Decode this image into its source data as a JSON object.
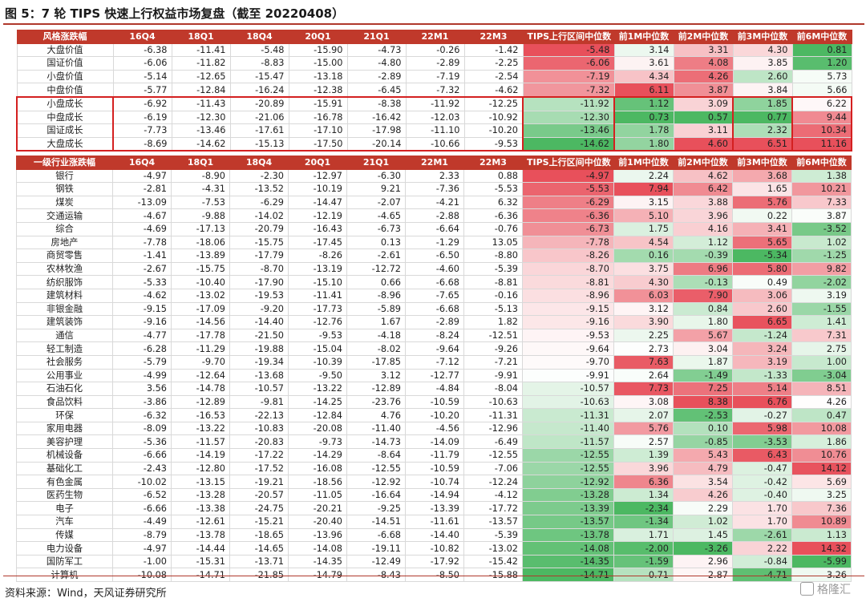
{
  "title": "图 5：7 轮 TIPS 快速上行权益市场复盘（截至 20220408）",
  "source": "资料来源：Wind，天风证券研究所",
  "watermark": "格隆汇",
  "colors": {
    "header_bg": "#c0392b",
    "header_text": "#ffffff",
    "neg_strong": "#4cb862",
    "pos_strong": "#e8505b",
    "box_border": "#d42020"
  },
  "style_table": {
    "headers": [
      "风格涨跌幅",
      "16Q4",
      "18Q1",
      "18Q4",
      "20Q1",
      "21Q1",
      "22M1",
      "22M3",
      "TIPS上行区间中位数",
      "前1M中位数",
      "前2M中位数",
      "前3M中位数",
      "前6M中位数"
    ],
    "rows": [
      [
        "大盘价值",
        "-6.38",
        "-11.41",
        "-5.48",
        "-15.90",
        "-4.73",
        "-0.26",
        "-1.42",
        "-5.48",
        "3.14",
        "3.31",
        "4.30",
        "0.81"
      ],
      [
        "国证价值",
        "-6.06",
        "-11.82",
        "-8.83",
        "-15.00",
        "-4.80",
        "-2.89",
        "-2.25",
        "-6.06",
        "3.61",
        "4.08",
        "3.85",
        "1.20"
      ],
      [
        "小盘价值",
        "-5.14",
        "-12.65",
        "-15.47",
        "-13.18",
        "-2.89",
        "-7.19",
        "-2.54",
        "-7.19",
        "4.34",
        "4.26",
        "2.60",
        "5.73"
      ],
      [
        "中盘价值",
        "-5.77",
        "-12.84",
        "-16.24",
        "-12.38",
        "-6.45",
        "-7.32",
        "-4.62",
        "-7.32",
        "6.11",
        "3.87",
        "3.84",
        "5.66"
      ],
      [
        "小盘成长",
        "-6.92",
        "-11.43",
        "-20.89",
        "-15.91",
        "-8.38",
        "-11.92",
        "-12.25",
        "-11.92",
        "1.12",
        "3.09",
        "1.85",
        "6.22"
      ],
      [
        "中盘成长",
        "-6.19",
        "-12.30",
        "-21.06",
        "-16.78",
        "-16.42",
        "-12.03",
        "-10.92",
        "-12.30",
        "0.73",
        "0.57",
        "0.77",
        "9.44"
      ],
      [
        "国证成长",
        "-7.73",
        "-13.46",
        "-17.61",
        "-17.10",
        "-17.98",
        "-11.10",
        "-10.20",
        "-13.46",
        "1.78",
        "3.11",
        "2.32",
        "10.34"
      ],
      [
        "大盘成长",
        "-8.69",
        "-14.62",
        "-15.13",
        "-17.50",
        "-20.14",
        "-10.66",
        "-9.53",
        "-14.62",
        "1.80",
        "4.60",
        "6.51",
        "11.16"
      ]
    ]
  },
  "industry_table": {
    "headers": [
      "一级行业涨跌幅",
      "16Q4",
      "18Q1",
      "18Q4",
      "20Q1",
      "21Q1",
      "22M1",
      "22M3",
      "TIPS上行区间中位数",
      "前1M中位数",
      "前2M中位数",
      "前3M中位数",
      "前6M中位数"
    ],
    "rows": [
      [
        "银行",
        "-4.97",
        "-8.90",
        "-2.30",
        "-12.97",
        "-6.30",
        "2.33",
        "0.88",
        "-4.97",
        "2.24",
        "4.62",
        "3.68",
        "1.38"
      ],
      [
        "钢铁",
        "-2.81",
        "-4.31",
        "-13.52",
        "-10.19",
        "9.21",
        "-7.36",
        "-5.53",
        "-5.53",
        "7.94",
        "6.42",
        "1.65",
        "10.21"
      ],
      [
        "煤炭",
        "-13.09",
        "-7.53",
        "-6.29",
        "-14.47",
        "-2.07",
        "-4.21",
        "6.32",
        "-6.29",
        "3.15",
        "3.88",
        "5.76",
        "7.33"
      ],
      [
        "交通运输",
        "-4.67",
        "-9.88",
        "-14.02",
        "-12.19",
        "-4.65",
        "-2.88",
        "-6.36",
        "-6.36",
        "5.10",
        "3.96",
        "0.22",
        "3.87"
      ],
      [
        "综合",
        "-4.69",
        "-17.13",
        "-20.79",
        "-16.43",
        "-6.73",
        "-6.64",
        "-0.76",
        "-6.73",
        "1.75",
        "4.16",
        "3.41",
        "-3.52"
      ],
      [
        "房地产",
        "-7.78",
        "-18.06",
        "-15.75",
        "-17.45",
        "0.13",
        "-1.29",
        "13.05",
        "-7.78",
        "4.54",
        "1.12",
        "5.65",
        "1.02"
      ],
      [
        "商贸零售",
        "-1.41",
        "-13.89",
        "-17.79",
        "-8.26",
        "-2.61",
        "-6.50",
        "-8.80",
        "-8.26",
        "0.16",
        "-0.39",
        "-5.34",
        "-1.25"
      ],
      [
        "农林牧渔",
        "-2.67",
        "-15.75",
        "-8.70",
        "-13.19",
        "-12.72",
        "-4.60",
        "-5.39",
        "-8.70",
        "3.75",
        "6.96",
        "5.80",
        "9.82"
      ],
      [
        "纺织服饰",
        "-5.33",
        "-10.40",
        "-17.90",
        "-15.10",
        "0.66",
        "-6.68",
        "-8.81",
        "-8.81",
        "4.30",
        "-0.13",
        "0.49",
        "-2.02"
      ],
      [
        "建筑材料",
        "-4.62",
        "-13.02",
        "-19.53",
        "-11.41",
        "-8.96",
        "-7.65",
        "-0.16",
        "-8.96",
        "6.03",
        "7.90",
        "3.06",
        "3.19"
      ],
      [
        "非银金融",
        "-9.15",
        "-17.09",
        "-9.20",
        "-17.73",
        "-5.89",
        "-6.68",
        "-5.13",
        "-9.15",
        "3.12",
        "0.84",
        "2.60",
        "-1.55"
      ],
      [
        "建筑装饰",
        "-9.16",
        "-14.56",
        "-14.40",
        "-12.76",
        "1.67",
        "-2.89",
        "1.82",
        "-9.16",
        "3.90",
        "1.80",
        "6.65",
        "1.41"
      ],
      [
        "通信",
        "-4.77",
        "-17.78",
        "-21.50",
        "-9.53",
        "-4.18",
        "-8.24",
        "-12.51",
        "-9.53",
        "2.25",
        "5.67",
        "-1.24",
        "7.31"
      ],
      [
        "轻工制造",
        "-6.28",
        "-11.29",
        "-19.88",
        "-15.04",
        "-8.02",
        "-9.64",
        "-9.26",
        "-9.64",
        "2.73",
        "3.04",
        "3.24",
        "2.75"
      ],
      [
        "社会服务",
        "-5.79",
        "-9.70",
        "-19.34",
        "-10.39",
        "-17.85",
        "-7.12",
        "-7.21",
        "-9.70",
        "7.63",
        "1.87",
        "3.19",
        "1.00"
      ],
      [
        "公用事业",
        "-4.99",
        "-12.64",
        "-13.68",
        "-9.50",
        "3.12",
        "-12.77",
        "-9.91",
        "-9.91",
        "2.64",
        "-1.49",
        "-1.33",
        "-3.04"
      ],
      [
        "石油石化",
        "3.56",
        "-14.78",
        "-10.57",
        "-13.22",
        "-12.89",
        "-4.84",
        "-8.04",
        "-10.57",
        "7.73",
        "7.25",
        "5.14",
        "8.51"
      ],
      [
        "食品饮料",
        "-3.86",
        "-12.89",
        "-9.81",
        "-14.25",
        "-23.76",
        "-10.59",
        "-10.63",
        "-10.63",
        "3.08",
        "8.38",
        "6.76",
        "4.26"
      ],
      [
        "环保",
        "-6.32",
        "-16.53",
        "-22.13",
        "-12.84",
        "4.76",
        "-10.20",
        "-11.31",
        "-11.31",
        "2.07",
        "-2.53",
        "-0.27",
        "0.47"
      ],
      [
        "家用电器",
        "-8.09",
        "-13.22",
        "-10.83",
        "-20.08",
        "-11.40",
        "-4.56",
        "-12.96",
        "-11.40",
        "5.76",
        "0.10",
        "5.98",
        "10.08"
      ],
      [
        "美容护理",
        "-5.36",
        "-11.57",
        "-20.83",
        "-9.73",
        "-14.73",
        "-14.09",
        "-6.49",
        "-11.57",
        "2.57",
        "-0.85",
        "-3.53",
        "1.86"
      ],
      [
        "机械设备",
        "-6.66",
        "-14.19",
        "-17.22",
        "-14.29",
        "-8.64",
        "-11.79",
        "-12.55",
        "-12.55",
        "1.39",
        "5.43",
        "6.43",
        "10.76"
      ],
      [
        "基础化工",
        "-2.43",
        "-12.80",
        "-17.52",
        "-16.08",
        "-12.55",
        "-10.59",
        "-7.06",
        "-12.55",
        "3.96",
        "4.79",
        "-0.47",
        "14.12"
      ],
      [
        "有色金属",
        "-10.02",
        "-13.15",
        "-19.21",
        "-18.56",
        "-12.92",
        "-10.74",
        "-12.24",
        "-12.92",
        "6.36",
        "3.54",
        "-0.42",
        "5.69"
      ],
      [
        "医药生物",
        "-6.52",
        "-13.28",
        "-20.57",
        "-11.05",
        "-16.64",
        "-14.94",
        "-4.12",
        "-13.28",
        "1.34",
        "4.26",
        "-0.40",
        "3.25"
      ],
      [
        "电子",
        "-6.66",
        "-13.38",
        "-24.75",
        "-20.21",
        "-9.25",
        "-13.39",
        "-17.72",
        "-13.39",
        "-2.34",
        "2.29",
        "1.70",
        "7.36"
      ],
      [
        "汽车",
        "-4.49",
        "-12.61",
        "-15.21",
        "-20.40",
        "-14.51",
        "-11.61",
        "-13.57",
        "-13.57",
        "-1.34",
        "1.02",
        "1.70",
        "10.89"
      ],
      [
        "传媒",
        "-8.79",
        "-13.78",
        "-18.65",
        "-13.96",
        "-6.68",
        "-14.40",
        "-5.39",
        "-13.78",
        "1.71",
        "1.45",
        "-2.61",
        "1.13"
      ],
      [
        "电力设备",
        "-4.97",
        "-14.44",
        "-14.65",
        "-14.08",
        "-19.11",
        "-10.82",
        "-13.02",
        "-14.08",
        "-2.00",
        "-3.26",
        "2.22",
        "14.32"
      ],
      [
        "国防军工",
        "-1.00",
        "-15.31",
        "-13.71",
        "-14.35",
        "-12.49",
        "-17.92",
        "-15.42",
        "-14.35",
        "-1.59",
        "2.96",
        "-0.84",
        "-5.99"
      ],
      [
        "计算机",
        "-10.08",
        "-14.71",
        "-21.85",
        "-14.79",
        "-8.43",
        "-8.50",
        "-15.88",
        "-14.71",
        "0.71",
        "2.87",
        "-4.71",
        "3.26"
      ]
    ]
  }
}
